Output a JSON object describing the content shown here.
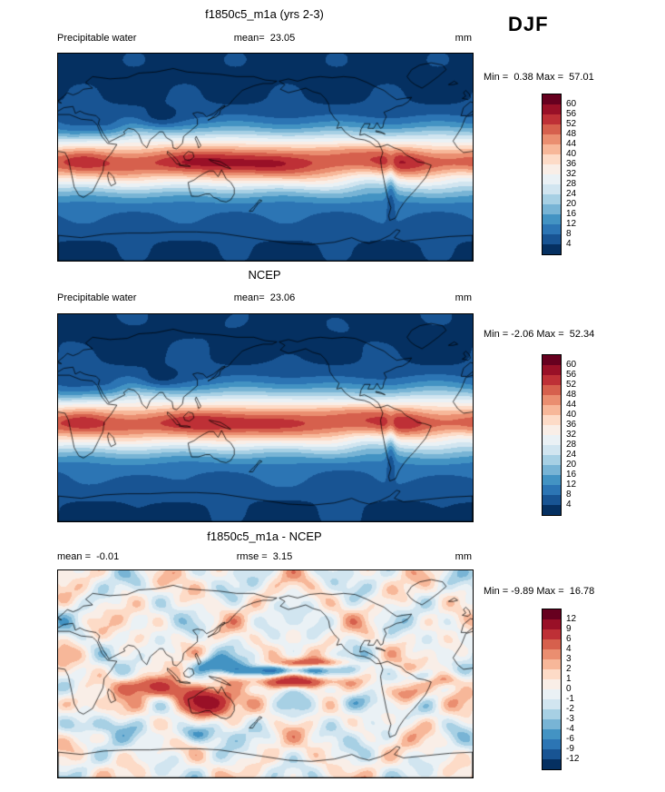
{
  "season": "DJF",
  "chart_data": {
    "type": "heatmap",
    "subtype": "filled-contour global maps",
    "variable": "Precipitable water",
    "units": "mm",
    "lon_range": [
      0,
      360
    ],
    "lat_range": [
      -90,
      90
    ],
    "palette": [
      "#053061",
      "#185493",
      "#2c75b4",
      "#4393c3",
      "#78b4d5",
      "#a7d0e4",
      "#d1e5f0",
      "#eaf1f5",
      "#f9eee7",
      "#fddbc7",
      "#f7b799",
      "#ea8e70",
      "#d6604d",
      "#be3036",
      "#991027",
      "#67001f"
    ],
    "panels": [
      {
        "id": "model",
        "title": "f1850c5_m1a (yrs 2-3)",
        "left_label": "Precipitable water",
        "center_label": "mean=  23.05",
        "right_label": "mm",
        "mean": 23.05,
        "min": 0.38,
        "max": 57.01,
        "stats_label": "Min =  0.38 Max =  57.01",
        "levels": [
          4,
          8,
          12,
          16,
          20,
          24,
          28,
          32,
          36,
          40,
          44,
          48,
          52,
          56,
          60
        ],
        "colorbar_labels": [
          "60",
          "56",
          "52",
          "48",
          "44",
          "40",
          "36",
          "32",
          "28",
          "24",
          "20",
          "16",
          "12",
          "8",
          "4"
        ]
      },
      {
        "id": "obs",
        "title": "NCEP",
        "left_label": "Precipitable water",
        "center_label": "mean=  23.06",
        "right_label": "mm",
        "mean": 23.06,
        "min": -2.06,
        "max": 52.34,
        "stats_label": "Min = -2.06 Max =  52.34",
        "levels": [
          4,
          8,
          12,
          16,
          20,
          24,
          28,
          32,
          36,
          40,
          44,
          48,
          52,
          56,
          60
        ],
        "colorbar_labels": [
          "60",
          "56",
          "52",
          "48",
          "44",
          "40",
          "36",
          "32",
          "28",
          "24",
          "20",
          "16",
          "12",
          "8",
          "4"
        ]
      },
      {
        "id": "diff",
        "title": "f1850c5_m1a - NCEP",
        "left_label": "mean =  -0.01",
        "center_label": "rmse =  3.15",
        "right_label": "mm",
        "mean": -0.01,
        "rmse": 3.15,
        "min": -9.89,
        "max": 16.78,
        "stats_label": "Min = -9.89 Max =  16.78",
        "levels": [
          -12,
          -9,
          -6,
          -4,
          -3,
          -2,
          -1,
          0,
          1,
          2,
          3,
          4,
          6,
          9,
          12
        ],
        "colorbar_labels": [
          "12",
          "9",
          "6",
          "4",
          "3",
          "2",
          "1",
          "0",
          "-1",
          "-2",
          "-3",
          "-4",
          "-6",
          "-9",
          "-12"
        ]
      }
    ]
  }
}
